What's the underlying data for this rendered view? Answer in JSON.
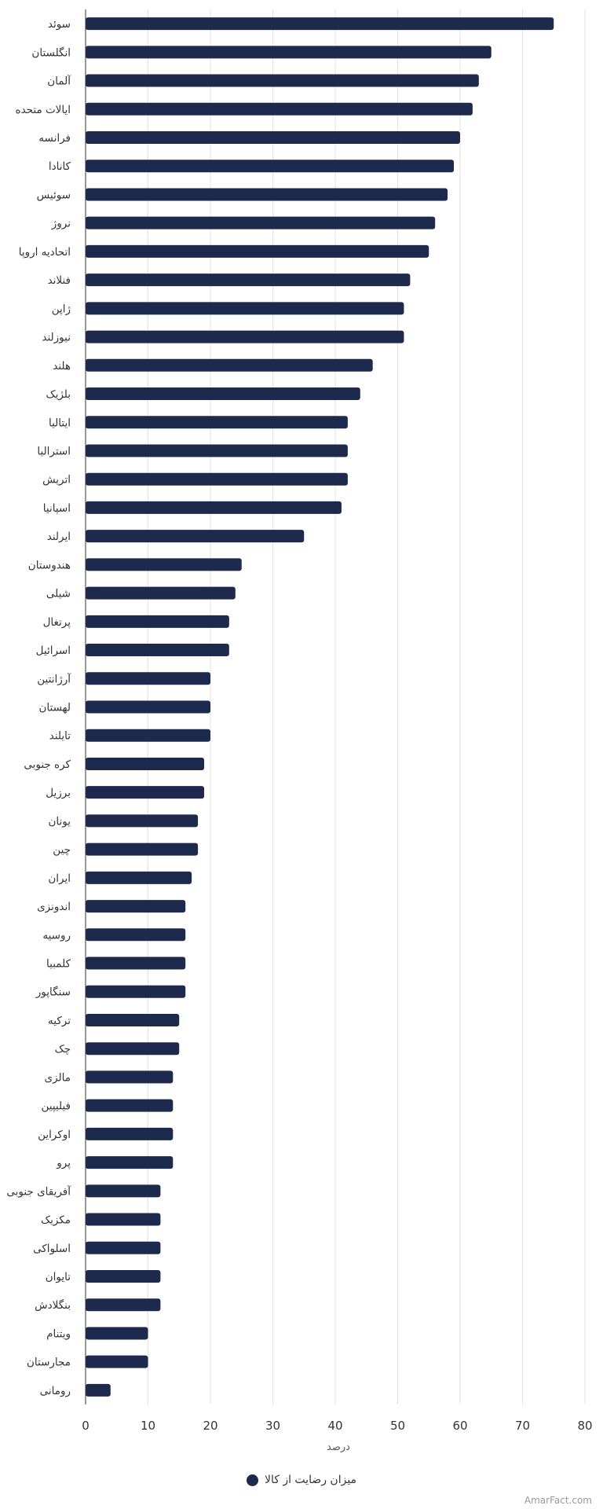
{
  "chart_data": {
    "type": "bar",
    "orientation": "horizontal",
    "categories": [
      "سوئد",
      "انگلستان",
      "آلمان",
      "ایالات متحده",
      "فرانسه",
      "کانادا",
      "سوئیس",
      "نروژ",
      "اتحادیه اروپا",
      "فنلاند",
      "ژاپن",
      "نیوزلند",
      "هلند",
      "بلژیک",
      "ایتالیا",
      "استرالیا",
      "اتریش",
      "اسپانیا",
      "ایرلند",
      "هندوستان",
      "شیلی",
      "پرتغال",
      "اسرائیل",
      "آرژانتین",
      "لهستان",
      "تایلند",
      "کره جنوبی",
      "برزیل",
      "یونان",
      "چین",
      "ایران",
      "اندونزی",
      "روسیه",
      "کلمبیا",
      "سنگاپور",
      "ترکیه",
      "چک",
      "مالزی",
      "فیلیپین",
      "اوکراین",
      "پرو",
      "آفریقای جنوبی",
      "مکزیک",
      "اسلواکی",
      "تایوان",
      "بنگلادش",
      "ویتنام",
      "مجارستان",
      "رومانی"
    ],
    "series": [
      {
        "name": "میزان رضایت از کالا",
        "color": "#1d2a4e",
        "values": [
          75,
          65,
          63,
          62,
          60,
          59,
          58,
          56,
          55,
          52,
          51,
          51,
          46,
          44,
          42,
          42,
          42,
          41,
          35,
          25,
          24,
          23,
          23,
          20,
          20,
          20,
          19,
          19,
          18,
          18,
          17,
          16,
          16,
          16,
          16,
          15,
          15,
          14,
          14,
          14,
          14,
          12,
          12,
          12,
          12,
          12,
          10,
          10,
          4
        ]
      }
    ],
    "xlim": [
      0,
      80
    ],
    "xticks": [
      "0",
      "10",
      "20",
      "30",
      "40",
      "50",
      "60",
      "70",
      "80"
    ],
    "xlabel": "درصد",
    "grid": true,
    "legend_position": "bottom-center"
  },
  "credit": "AmarFact.com"
}
